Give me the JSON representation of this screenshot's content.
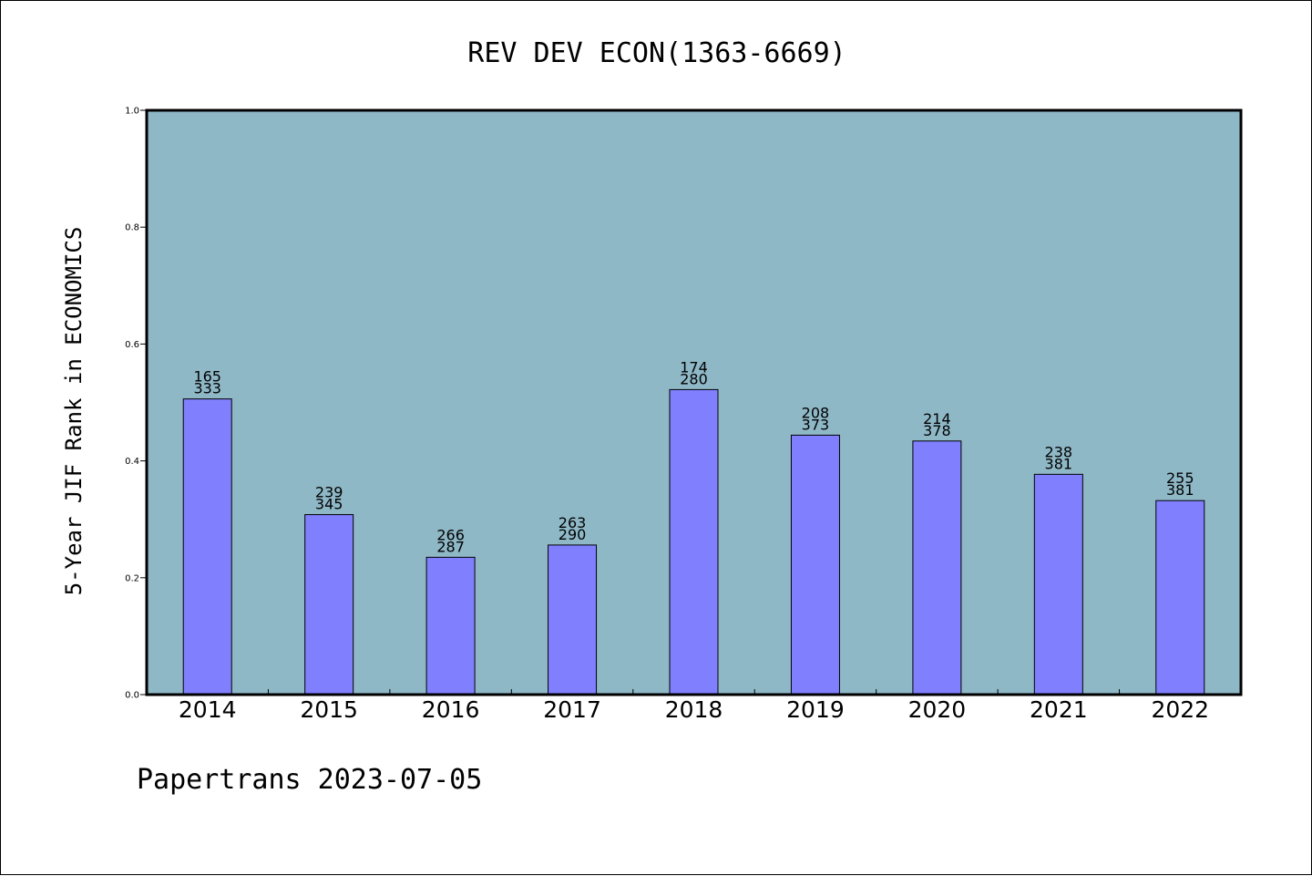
{
  "colors": {
    "plot_background": "#8fb8c7",
    "bar_fill": "#8080ff",
    "bar_stroke": "#000000",
    "frame": "#000000"
  },
  "footer": "Papertrans 2023-07-05",
  "chart_data": {
    "type": "bar",
    "title": "REV DEV ECON(1363-6669)",
    "xlabel": "",
    "ylabel": "5-Year JIF Rank in ECONOMICS",
    "ylim": [
      0.0,
      1.0
    ],
    "yticks": [
      "0.0",
      "0.2",
      "0.4",
      "0.6",
      "0.8",
      "1.0"
    ],
    "grid": false,
    "legend": "none",
    "categories": [
      "2014",
      "2015",
      "2016",
      "2017",
      "2018",
      "2019",
      "2020",
      "2021",
      "2022"
    ],
    "values": [
      0.506,
      0.308,
      0.235,
      0.256,
      0.522,
      0.444,
      0.434,
      0.377,
      0.332
    ],
    "bar_labels": [
      [
        "165",
        "333"
      ],
      [
        "239",
        "345"
      ],
      [
        "266",
        "287"
      ],
      [
        "263",
        "290"
      ],
      [
        "174",
        "280"
      ],
      [
        "208",
        "373"
      ],
      [
        "214",
        "378"
      ],
      [
        "238",
        "381"
      ],
      [
        "255",
        "381"
      ]
    ]
  }
}
